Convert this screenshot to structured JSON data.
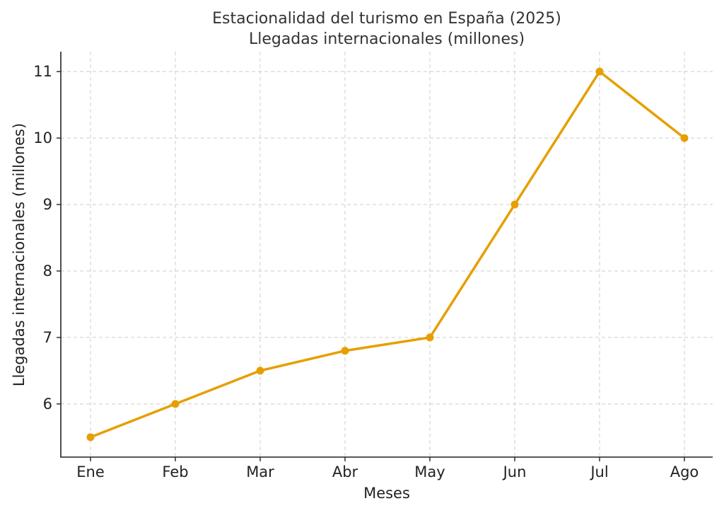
{
  "chart_data": {
    "type": "line",
    "title": "Estacionalidad del turismo en España (2025)",
    "subtitle": "Llegadas internacionales (millones)",
    "xlabel": "Meses",
    "ylabel": "Llegadas internacionales (millones)",
    "categories": [
      "Ene",
      "Feb",
      "Mar",
      "Abr",
      "May",
      "Jun",
      "Jul",
      "Ago"
    ],
    "series": [
      {
        "name": "Llegadas internacionales",
        "values": [
          5.5,
          6.0,
          6.5,
          6.8,
          7.0,
          9.0,
          11.0,
          10.0
        ]
      }
    ],
    "yticks": [
      6,
      7,
      8,
      9,
      10,
      11
    ],
    "ylim": [
      5.2,
      11.3
    ],
    "grid": true,
    "color": "#E69F00"
  }
}
